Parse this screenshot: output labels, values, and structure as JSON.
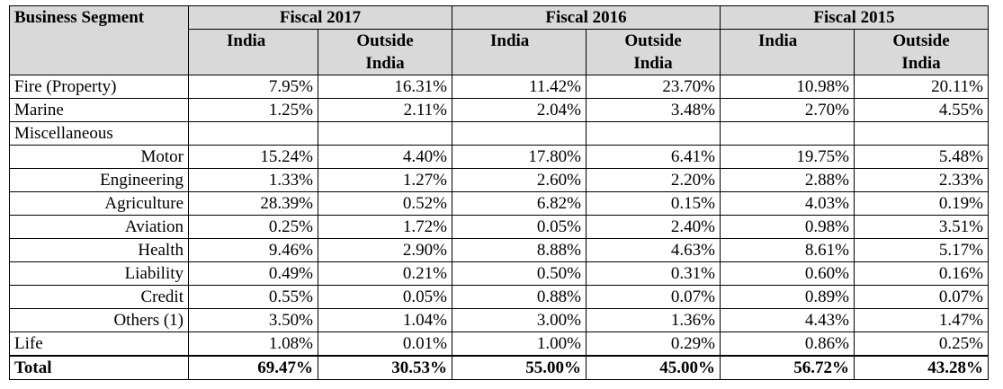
{
  "header": {
    "segment_label": "Business Segment",
    "years": [
      "Fiscal 2017",
      "Fiscal 2016",
      "Fiscal 2015"
    ],
    "india_label": "India",
    "outside_label_1": "Outside",
    "outside_label_2": "India"
  },
  "rows": [
    {
      "label": "Fire (Property)",
      "indent": false,
      "values": [
        "7.95%",
        "16.31%",
        "11.42%",
        "23.70%",
        "10.98%",
        "20.11%"
      ]
    },
    {
      "label": "Marine",
      "indent": false,
      "values": [
        "1.25%",
        "2.11%",
        "2.04%",
        "3.48%",
        "2.70%",
        "4.55%"
      ]
    },
    {
      "label": "Miscellaneous",
      "indent": false,
      "values": [
        "",
        "",
        "",
        "",
        "",
        ""
      ]
    },
    {
      "label": "Motor",
      "indent": true,
      "values": [
        "15.24%",
        "4.40%",
        "17.80%",
        "6.41%",
        "19.75%",
        "5.48%"
      ]
    },
    {
      "label": "Engineering",
      "indent": true,
      "values": [
        "1.33%",
        "1.27%",
        "2.60%",
        "2.20%",
        "2.88%",
        "2.33%"
      ]
    },
    {
      "label": "Agriculture",
      "indent": true,
      "values": [
        "28.39%",
        "0.52%",
        "6.82%",
        "0.15%",
        "4.03%",
        "0.19%"
      ]
    },
    {
      "label": "Aviation",
      "indent": true,
      "values": [
        "0.25%",
        "1.72%",
        "0.05%",
        "2.40%",
        "0.98%",
        "3.51%"
      ]
    },
    {
      "label": "Health",
      "indent": true,
      "values": [
        "9.46%",
        "2.90%",
        "8.88%",
        "4.63%",
        "8.61%",
        "5.17%"
      ]
    },
    {
      "label": "Liability",
      "indent": true,
      "values": [
        "0.49%",
        "0.21%",
        "0.50%",
        "0.31%",
        "0.60%",
        "0.16%"
      ]
    },
    {
      "label": "Credit",
      "indent": true,
      "values": [
        "0.55%",
        "0.05%",
        "0.88%",
        "0.07%",
        "0.89%",
        "0.07%"
      ]
    },
    {
      "label": "Others (1)",
      "indent": true,
      "values": [
        "3.50%",
        "1.04%",
        "3.00%",
        "1.36%",
        "4.43%",
        "1.47%"
      ]
    },
    {
      "label": "Life",
      "indent": false,
      "values": [
        "1.08%",
        "0.01%",
        "1.00%",
        "0.29%",
        "0.86%",
        "0.25%"
      ]
    }
  ],
  "total": {
    "label": "Total",
    "values": [
      "69.47%",
      "30.53%",
      "55.00%",
      "45.00%",
      "56.72%",
      "43.28%"
    ]
  }
}
